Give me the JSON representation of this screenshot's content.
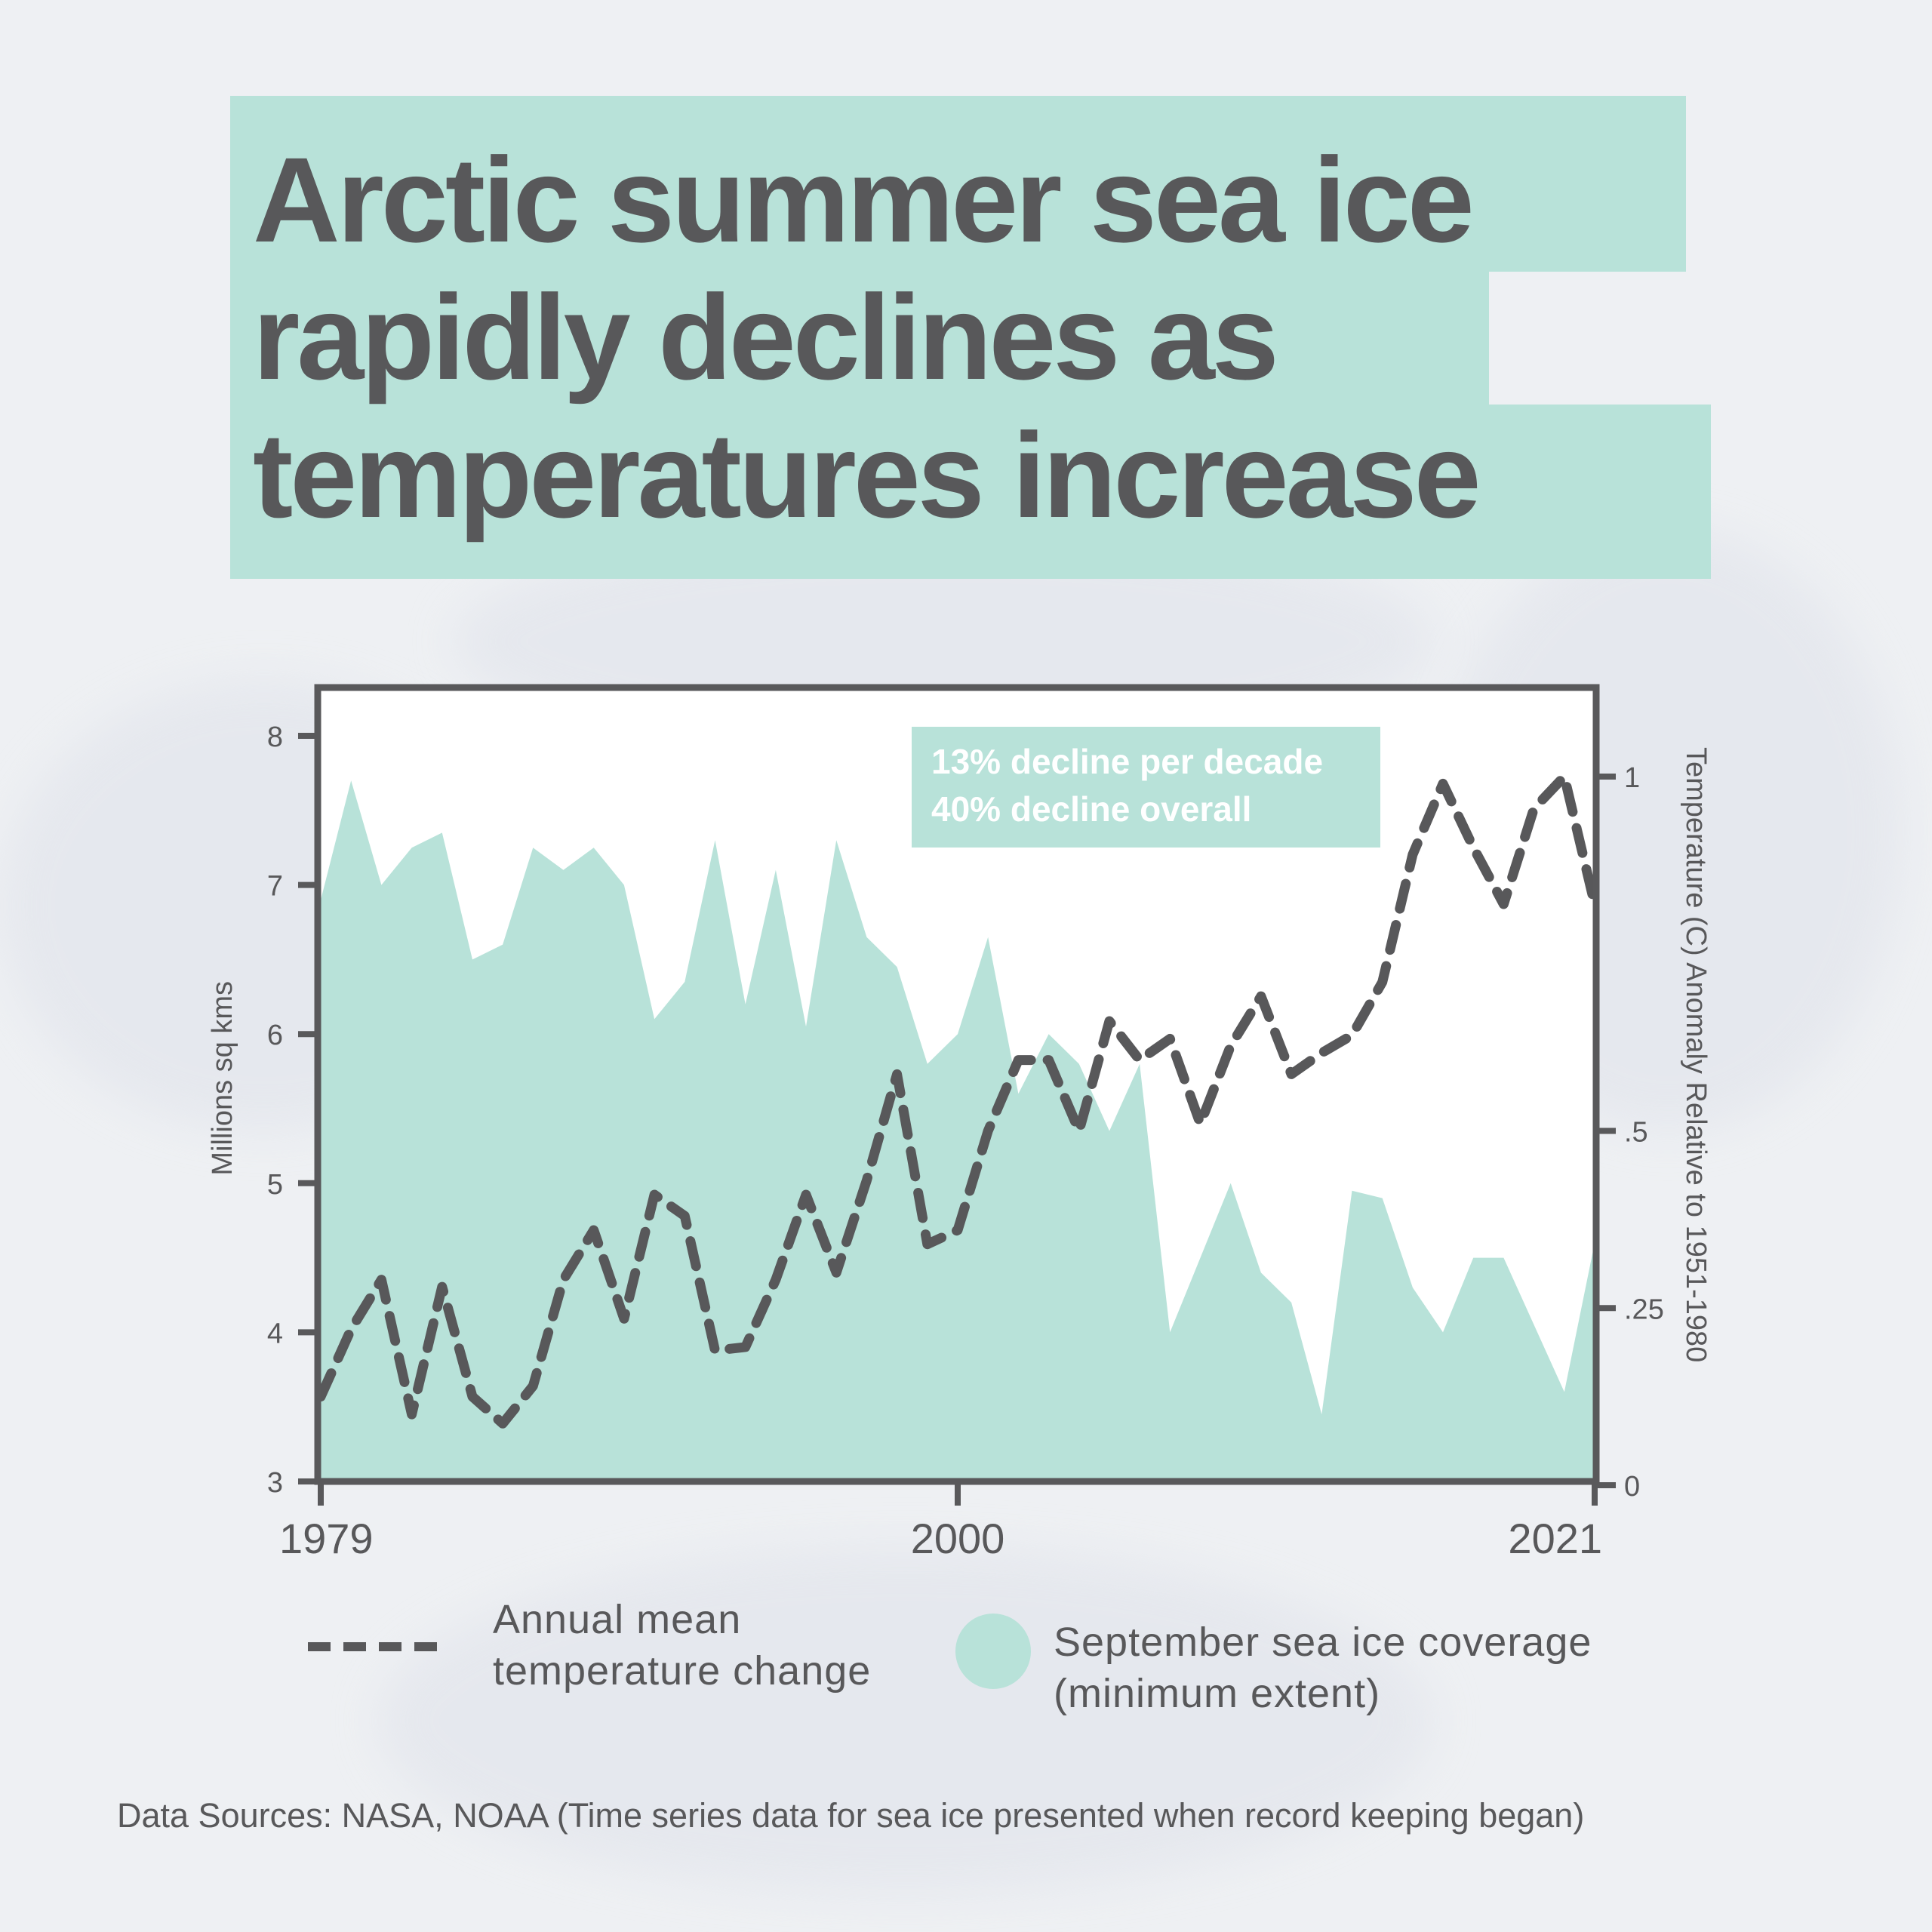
{
  "title_lines": [
    "Arctic summer sea ice",
    "rapidly declines as",
    "temperatures increase"
  ],
  "annotation": [
    "13% decline per decade",
    "40% decline overall"
  ],
  "footer": "Data Sources: NASA, NOAA (Time series data for sea ice presented when record keeping began)",
  "colors": {
    "ice_fill": "#b8e2d9",
    "temp_line": "#58585a",
    "text": "#58585a",
    "background": "#eef0f3"
  },
  "legend": {
    "temperature": [
      "Annual mean",
      "temperature change"
    ],
    "ice": [
      "September sea ice coverage",
      "(minimum extent)"
    ]
  },
  "chart_data": {
    "type": "area+line",
    "x_ticks": [
      "1979",
      "2000",
      "2021"
    ],
    "xlim": [
      1979,
      2021
    ],
    "left_axis": {
      "label": "Millions sq kms",
      "ylim": [
        3,
        8
      ],
      "ticks": [
        "3",
        "4",
        "5",
        "6",
        "7",
        "8"
      ]
    },
    "right_axis": {
      "label": "Temperature (C) Anomaly Relative to 1951-1980",
      "ylim": [
        0,
        1
      ],
      "ticks": [
        "0",
        ".25",
        ".5",
        "1"
      ],
      "tick_values": [
        0,
        0.25,
        0.5,
        1
      ]
    },
    "years": [
      1979,
      1980,
      1981,
      1982,
      1983,
      1984,
      1985,
      1986,
      1987,
      1988,
      1989,
      1990,
      1991,
      1992,
      1993,
      1994,
      1995,
      1996,
      1997,
      1998,
      1999,
      2000,
      2001,
      2002,
      2003,
      2004,
      2005,
      2006,
      2007,
      2008,
      2009,
      2010,
      2011,
      2012,
      2013,
      2014,
      2015,
      2016,
      2017,
      2018,
      2019,
      2020,
      2021
    ],
    "series": [
      {
        "name": "September sea ice coverage (minimum extent)",
        "axis": "left",
        "type": "area",
        "values": [
          6.9,
          7.7,
          7.0,
          7.25,
          7.35,
          6.5,
          6.6,
          7.25,
          7.1,
          7.25,
          7.0,
          6.1,
          6.35,
          7.3,
          6.2,
          7.1,
          6.05,
          7.3,
          6.65,
          6.45,
          5.8,
          6.0,
          6.65,
          5.6,
          6.0,
          5.8,
          5.35,
          5.8,
          4.0,
          4.5,
          5.0,
          4.4,
          4.2,
          3.45,
          4.95,
          4.9,
          4.3,
          4.0,
          4.5,
          4.5,
          4.05,
          3.6,
          4.6
        ]
      },
      {
        "name": "Annual mean temperature change",
        "axis": "right",
        "type": "line",
        "style": "dashed",
        "values": [
          0.125,
          0.22,
          0.29,
          0.1,
          0.28,
          0.125,
          0.087,
          0.14,
          0.29,
          0.36,
          0.235,
          0.41,
          0.38,
          0.19,
          0.195,
          0.29,
          0.41,
          0.3,
          0.43,
          0.58,
          0.34,
          0.36,
          0.5,
          0.6,
          0.6,
          0.5,
          0.655,
          0.6,
          0.63,
          0.51,
          0.62,
          0.69,
          0.58,
          0.61,
          0.635,
          0.71,
          0.89,
          0.99,
          0.9,
          0.82,
          0.955,
          1.0,
          0.82
        ]
      }
    ]
  }
}
